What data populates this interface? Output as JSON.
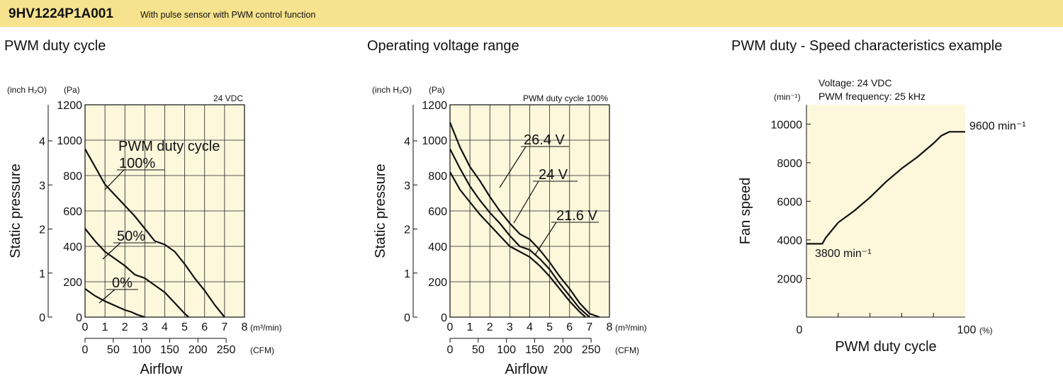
{
  "header": {
    "model": "9HV1224P1A001",
    "description": "With pulse sensor with PWM control function"
  },
  "colors": {
    "banner": "#f7e38d",
    "plot_bg": "#fdf7dc",
    "curve": "#111111"
  },
  "chart_data": [
    {
      "type": "line",
      "title": "PWM duty cycle",
      "annotation": "24 VDC",
      "xlabel": "Airflow",
      "ylabel": "Static pressure",
      "x_unit": "(m³/min)",
      "x2_unit": "(CFM)",
      "y_unit": "(Pa)",
      "y2_unit": "(inch H₂O)",
      "xlim": [
        0,
        8
      ],
      "ylim": [
        0,
        1200
      ],
      "x_ticks": [
        "0",
        "1",
        "2",
        "3",
        "4",
        "5",
        "6",
        "7",
        "8"
      ],
      "x2_ticks": [
        "0",
        "50",
        "100",
        "150",
        "200",
        "250"
      ],
      "y_ticks": [
        "0",
        "200",
        "400",
        "600",
        "800",
        "1000",
        "1200"
      ],
      "y2_ticks": [
        "0",
        "1",
        "2",
        "3",
        "4"
      ],
      "grid": true,
      "legend_title": "PWM duty cycle",
      "series": [
        {
          "name": "100%",
          "x": [
            0,
            0.5,
            1,
            1.5,
            2,
            2.5,
            3,
            3.5,
            4,
            4.5,
            5,
            5.5,
            6,
            6.5,
            7
          ],
          "values": [
            950,
            850,
            750,
            690,
            630,
            570,
            500,
            430,
            410,
            370,
            300,
            220,
            150,
            70,
            0
          ]
        },
        {
          "name": "50%",
          "x": [
            0,
            0.5,
            1,
            1.5,
            2,
            2.5,
            3,
            3.5,
            4,
            4.5,
            5,
            5.2
          ],
          "values": [
            500,
            430,
            370,
            330,
            290,
            240,
            220,
            180,
            140,
            80,
            20,
            0
          ]
        },
        {
          "name": "0%",
          "x": [
            0,
            0.5,
            1,
            1.5,
            2,
            2.3,
            2.6,
            3
          ],
          "values": [
            160,
            120,
            90,
            65,
            40,
            30,
            15,
            0
          ]
        }
      ]
    },
    {
      "type": "line",
      "title": "Operating voltage range",
      "annotation": "PWM duty cycle 100%",
      "xlabel": "Airflow",
      "ylabel": "Static pressure",
      "x_unit": "(m³/min)",
      "x2_unit": "(CFM)",
      "y_unit": "(Pa)",
      "y2_unit": "(inch H₂O)",
      "xlim": [
        0,
        8
      ],
      "ylim": [
        0,
        1200
      ],
      "x_ticks": [
        "0",
        "1",
        "2",
        "3",
        "4",
        "5",
        "6",
        "7",
        "8"
      ],
      "x2_ticks": [
        "0",
        "50",
        "100",
        "150",
        "200",
        "250"
      ],
      "y_ticks": [
        "0",
        "200",
        "400",
        "600",
        "800",
        "1000",
        "1200"
      ],
      "y2_ticks": [
        "0",
        "1",
        "2",
        "3",
        "4"
      ],
      "grid": true,
      "series": [
        {
          "name": "26.4 V",
          "x": [
            0,
            0.5,
            1,
            1.5,
            2,
            2.5,
            3,
            3.5,
            4,
            4.5,
            5,
            5.5,
            6,
            6.5,
            7,
            7.5
          ],
          "values": [
            1100,
            960,
            850,
            770,
            680,
            600,
            530,
            470,
            440,
            380,
            310,
            230,
            160,
            80,
            20,
            0
          ]
        },
        {
          "name": "24 V",
          "x": [
            0,
            0.5,
            1,
            1.5,
            2,
            2.5,
            3,
            3.5,
            4,
            4.5,
            5,
            5.5,
            6,
            6.5,
            7
          ],
          "values": [
            950,
            840,
            740,
            660,
            590,
            530,
            460,
            400,
            380,
            330,
            270,
            190,
            120,
            50,
            0
          ]
        },
        {
          "name": "21.6 V",
          "x": [
            0,
            0.5,
            1,
            1.5,
            2,
            2.5,
            3,
            3.5,
            4,
            4.5,
            5,
            5.5,
            6,
            6.5,
            6.8
          ],
          "values": [
            820,
            720,
            650,
            580,
            520,
            460,
            400,
            370,
            340,
            290,
            230,
            160,
            90,
            30,
            0
          ]
        }
      ]
    },
    {
      "type": "line",
      "title": "PWM duty - Speed characteristics example",
      "annotation_lines": [
        "Voltage: 24 VDC",
        "PWM frequency: 25 kHz"
      ],
      "xlabel": "PWM duty cycle",
      "ylabel": "Fan speed",
      "x_unit": "(%)",
      "y_unit": "(min⁻¹)",
      "xlim": [
        0,
        100
      ],
      "ylim": [
        0,
        11000
      ],
      "x_tick_labels": [
        "0",
        "100"
      ],
      "y_ticks": [
        "2000",
        "4000",
        "6000",
        "8000",
        "10000"
      ],
      "grid": false,
      "point_labels": [
        "3800 min⁻¹",
        "9600 min⁻¹"
      ],
      "series": [
        {
          "name": "",
          "x": [
            0,
            10,
            12,
            15,
            20,
            30,
            40,
            50,
            60,
            70,
            80,
            85,
            90,
            100
          ],
          "values": [
            3800,
            3800,
            4100,
            4400,
            4900,
            5500,
            6200,
            7000,
            7700,
            8300,
            9000,
            9400,
            9600,
            9600
          ]
        }
      ]
    }
  ]
}
